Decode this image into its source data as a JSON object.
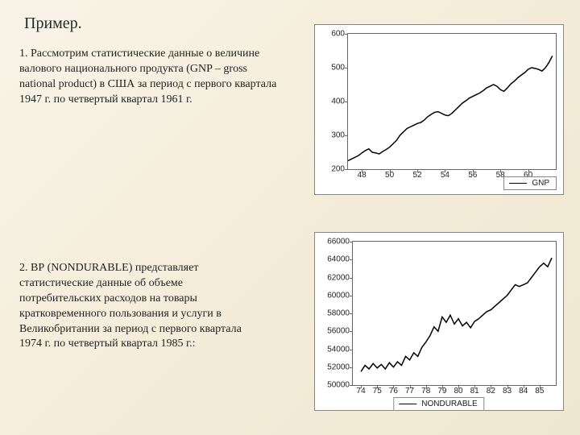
{
  "title": "Пример.",
  "paragraph1": "1. Рассмотрим статистические данные о величине валового национального продукта (GNP – gross national product) в США за период с первого квартала 1947 г. по четвертый квартал 1961 г.",
  "paragraph2": "2. ВР (NONDURABLE) представляет статистические данные об объеме потребительских расходов на товары кратковременного пользования и услуги в Великобритании за период с первого квартала 1974 г. по четвертый квартал 1985 г.:",
  "chart1": {
    "type": "line",
    "legend_label": "GNP",
    "line_color": "#000000",
    "line_width": 1.5,
    "background_color": "#ffffff",
    "border_color": "#666666",
    "ylim": [
      200,
      600
    ],
    "yticks": [
      200,
      300,
      400,
      500,
      600
    ],
    "xlim": [
      47,
      62
    ],
    "xticks": [
      48,
      50,
      52,
      54,
      56,
      58,
      60
    ],
    "tick_fontsize": 10,
    "x": [
      47.0,
      47.25,
      47.5,
      47.75,
      48.0,
      48.25,
      48.5,
      48.75,
      49.0,
      49.25,
      49.5,
      49.75,
      50.0,
      50.25,
      50.5,
      50.75,
      51.0,
      51.25,
      51.5,
      51.75,
      52.0,
      52.25,
      52.5,
      52.75,
      53.0,
      53.25,
      53.5,
      53.75,
      54.0,
      54.25,
      54.5,
      54.75,
      55.0,
      55.25,
      55.5,
      55.75,
      56.0,
      56.25,
      56.5,
      56.75,
      57.0,
      57.25,
      57.5,
      57.75,
      58.0,
      58.25,
      58.5,
      58.75,
      59.0,
      59.25,
      59.5,
      59.75,
      60.0,
      60.25,
      60.5,
      60.75,
      61.0,
      61.25,
      61.5,
      61.75
    ],
    "y": [
      225,
      230,
      235,
      240,
      248,
      255,
      260,
      250,
      248,
      245,
      252,
      258,
      265,
      275,
      285,
      300,
      310,
      320,
      325,
      330,
      335,
      338,
      345,
      355,
      362,
      368,
      370,
      365,
      360,
      358,
      365,
      375,
      385,
      395,
      402,
      410,
      415,
      420,
      425,
      432,
      440,
      445,
      450,
      445,
      435,
      430,
      440,
      452,
      460,
      470,
      478,
      485,
      495,
      500,
      498,
      495,
      490,
      500,
      515,
      535
    ]
  },
  "chart2": {
    "type": "line",
    "legend_label": "NONDURABLE",
    "line_color": "#000000",
    "line_width": 1.5,
    "background_color": "#ffffff",
    "border_color": "#666666",
    "ylim": [
      50000,
      66000
    ],
    "yticks": [
      50000,
      52000,
      54000,
      56000,
      58000,
      60000,
      62000,
      64000,
      66000
    ],
    "xlim": [
      73.5,
      86
    ],
    "xticks": [
      74,
      75,
      76,
      77,
      78,
      79,
      80,
      81,
      82,
      83,
      84,
      85
    ],
    "tick_fontsize": 10,
    "x": [
      74.0,
      74.25,
      74.5,
      74.75,
      75.0,
      75.25,
      75.5,
      75.75,
      76.0,
      76.25,
      76.5,
      76.75,
      77.0,
      77.25,
      77.5,
      77.75,
      78.0,
      78.25,
      78.5,
      78.75,
      79.0,
      79.25,
      79.5,
      79.75,
      80.0,
      80.25,
      80.5,
      80.75,
      81.0,
      81.25,
      81.5,
      81.75,
      82.0,
      82.25,
      82.5,
      82.75,
      83.0,
      83.25,
      83.5,
      83.75,
      84.0,
      84.25,
      84.5,
      84.75,
      85.0,
      85.25,
      85.5,
      85.75
    ],
    "y": [
      51500,
      52200,
      51800,
      52400,
      51900,
      52300,
      51800,
      52500,
      52000,
      52600,
      52200,
      53200,
      52800,
      53600,
      53200,
      54200,
      54800,
      55500,
      56500,
      56000,
      57600,
      57000,
      57800,
      56800,
      57400,
      56600,
      57000,
      56400,
      57100,
      57400,
      57800,
      58200,
      58400,
      58800,
      59200,
      59600,
      60000,
      60600,
      61200,
      61000,
      61200,
      61400,
      62000,
      62600,
      63200,
      63600,
      63200,
      64200
    ]
  }
}
